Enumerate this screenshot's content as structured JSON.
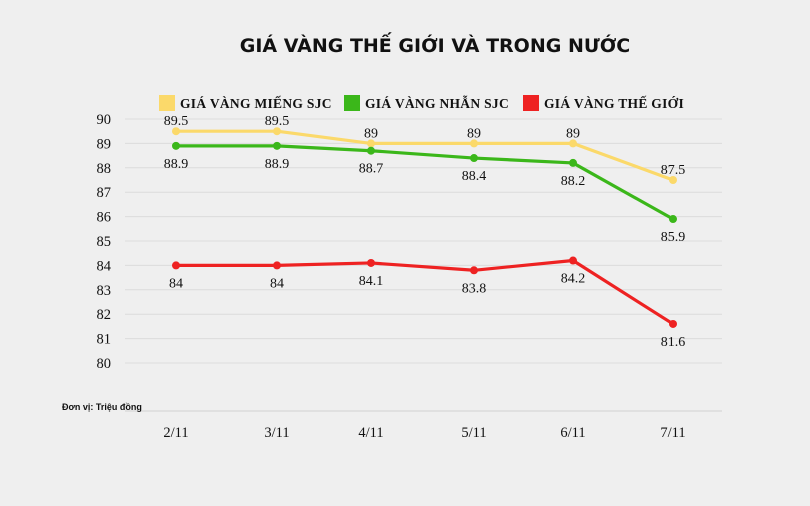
{
  "chart_data": {
    "type": "line",
    "title": "GIÁ VÀNG THẾ GIỚI VÀ TRONG NƯỚC",
    "unit_note": "Đơn vị: Triệu đồng",
    "categories": [
      "2/11",
      "3/11",
      "4/11",
      "5/11",
      "6/11",
      "7/11"
    ],
    "ylim": [
      80,
      90
    ],
    "yticks": [
      "90",
      "89",
      "88",
      "87",
      "86",
      "85",
      "84",
      "83",
      "82",
      "81",
      "80"
    ],
    "grid": true,
    "legend_position": "top",
    "series": [
      {
        "name": "GIÁ VÀNG MIẾNG SJC",
        "color": "#fbd96a",
        "values": [
          89.5,
          89.5,
          89,
          89,
          89,
          87.5
        ],
        "labels": [
          "89.5",
          "89.5",
          "89",
          "89",
          "89",
          "87.5"
        ],
        "label_position": [
          "above",
          "above",
          "above",
          "above",
          "above",
          "above"
        ]
      },
      {
        "name": "GIÁ VÀNG NHẪN SJC",
        "color": "#3bb71a",
        "values": [
          88.9,
          88.9,
          88.7,
          88.4,
          88.2,
          85.9
        ],
        "labels": [
          "88.9",
          "88.9",
          "88.7",
          "88.4",
          "88.2",
          "85.9"
        ],
        "label_position": [
          "below",
          "below",
          "below",
          "below",
          "below",
          "below"
        ]
      },
      {
        "name": "GIÁ VÀNG THẾ GIỚI",
        "color": "#ee2222",
        "values": [
          84,
          84,
          84.1,
          83.8,
          84.2,
          81.6
        ],
        "labels": [
          "84",
          "84",
          "84.1",
          "83.8",
          "84.2",
          "81.6"
        ],
        "label_position": [
          "below",
          "below",
          "below",
          "below",
          "below",
          "below"
        ]
      }
    ]
  }
}
